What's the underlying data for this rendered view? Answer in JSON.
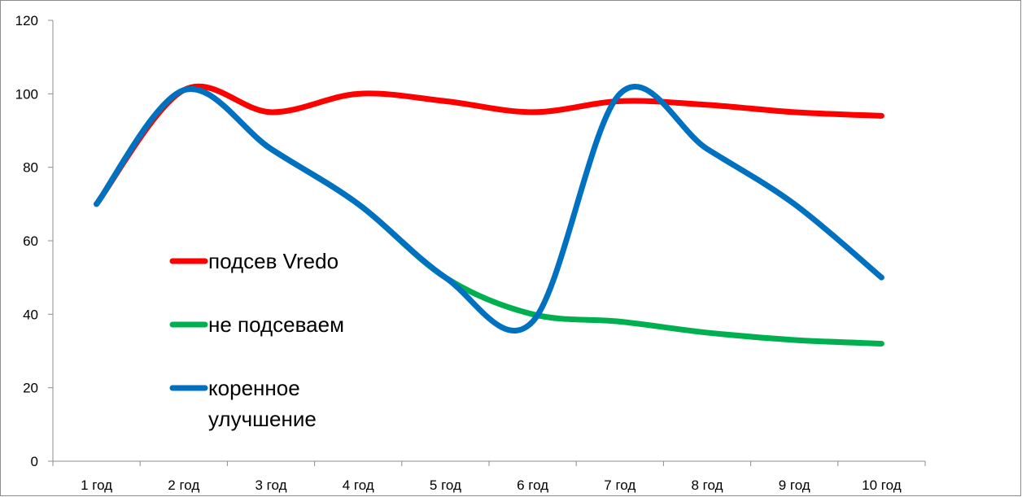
{
  "chart_data": {
    "type": "line",
    "title": "",
    "xlabel": "",
    "ylabel": "",
    "categories": [
      "1 год",
      "2 год",
      "3 год",
      "4 год",
      "5 год",
      "6 год",
      "7 год",
      "8 год",
      "9 год",
      "10 год"
    ],
    "ylim": [
      0,
      120
    ],
    "yticks": [
      0,
      20,
      40,
      60,
      80,
      100,
      120
    ],
    "grid": false,
    "smooth": true,
    "legend_position": "left-center",
    "series": [
      {
        "name": "подсев Vredo",
        "color": "#ff0000",
        "values": [
          70,
          101,
          95,
          100,
          98,
          95,
          98,
          97,
          95,
          94
        ]
      },
      {
        "name": "не подсеваем",
        "color": "#00b050",
        "values": [
          70,
          101,
          85,
          70,
          50,
          40,
          38,
          35,
          33,
          32
        ]
      },
      {
        "name": "коренное улучшение",
        "color": "#0070c0",
        "values": [
          70,
          101,
          85,
          70,
          50,
          38,
          100,
          85,
          70,
          50
        ]
      }
    ]
  }
}
